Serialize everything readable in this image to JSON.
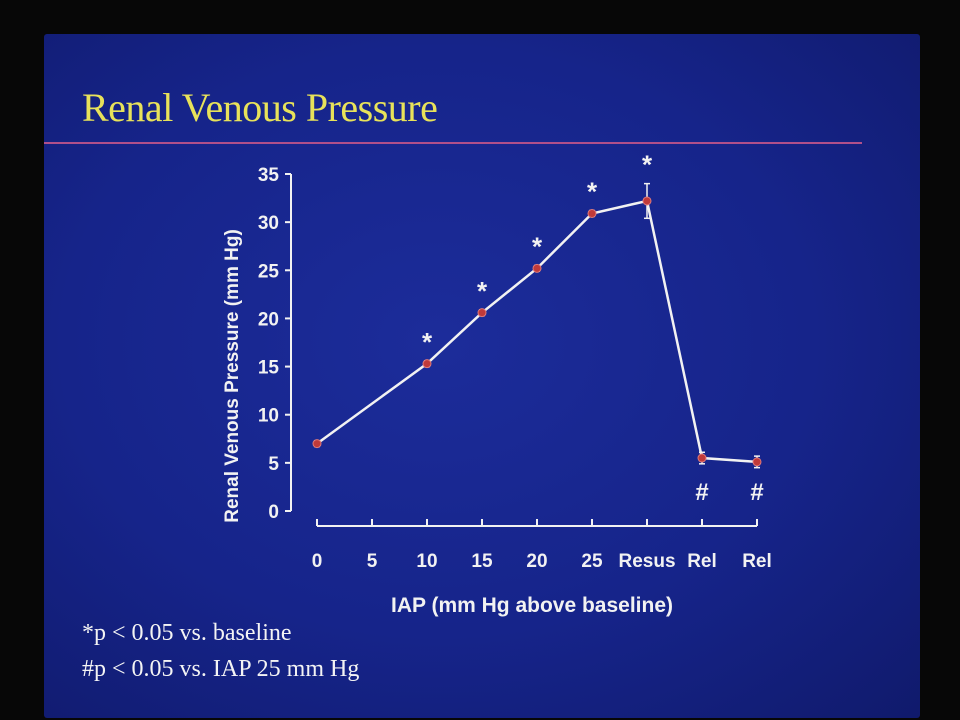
{
  "slide": {
    "title": "Renal Venous Pressure",
    "footnotes": [
      "*p < 0.05 vs. baseline",
      "#p < 0.05 vs. IAP 25 mm Hg"
    ]
  },
  "chart_data": {
    "type": "line",
    "xlabel": "IAP (mm Hg above baseline)",
    "ylabel": "Renal Venous Pressure (mm Hg)",
    "categories": [
      "0",
      "5",
      "10",
      "15",
      "20",
      "25",
      "Resus",
      "Rel",
      "Rel"
    ],
    "x_ticks": [
      "0",
      "5",
      "10",
      "15",
      "20",
      "25",
      "Resus",
      "Rel",
      "Rel"
    ],
    "y_ticks": [
      0,
      5,
      10,
      15,
      20,
      25,
      30,
      35
    ],
    "ylim": [
      0,
      35
    ],
    "series": [
      {
        "points": [
          {
            "x": "0",
            "y": 7.0,
            "err": 0.3
          },
          {
            "x": "10",
            "y": 15.3,
            "err": 0.3
          },
          {
            "x": "15",
            "y": 20.6,
            "err": 0.3
          },
          {
            "x": "20",
            "y": 25.2,
            "err": 0.3
          },
          {
            "x": "25",
            "y": 30.9,
            "err": 0.3
          },
          {
            "x": "Resus",
            "y": 32.2,
            "err": 1.8
          },
          {
            "x": "Rel",
            "y": 5.5,
            "err": 0.6
          },
          {
            "x": "Rel",
            "y": 5.1,
            "err": 0.6
          }
        ]
      }
    ],
    "significance_marks": [
      {
        "category_index": 2,
        "mark": "*"
      },
      {
        "category_index": 3,
        "mark": "*"
      },
      {
        "category_index": 4,
        "mark": "*"
      },
      {
        "category_index": 5,
        "mark": "*"
      },
      {
        "category_index": 6,
        "mark": "*"
      },
      {
        "category_index": 7,
        "mark": "#"
      },
      {
        "category_index": 8,
        "mark": "#"
      }
    ],
    "grid": false,
    "colors": {
      "line": "#f2f2f2",
      "marker": "#c03a3a",
      "axis": "#f2f2f2",
      "text": "#f2f2f2"
    }
  }
}
